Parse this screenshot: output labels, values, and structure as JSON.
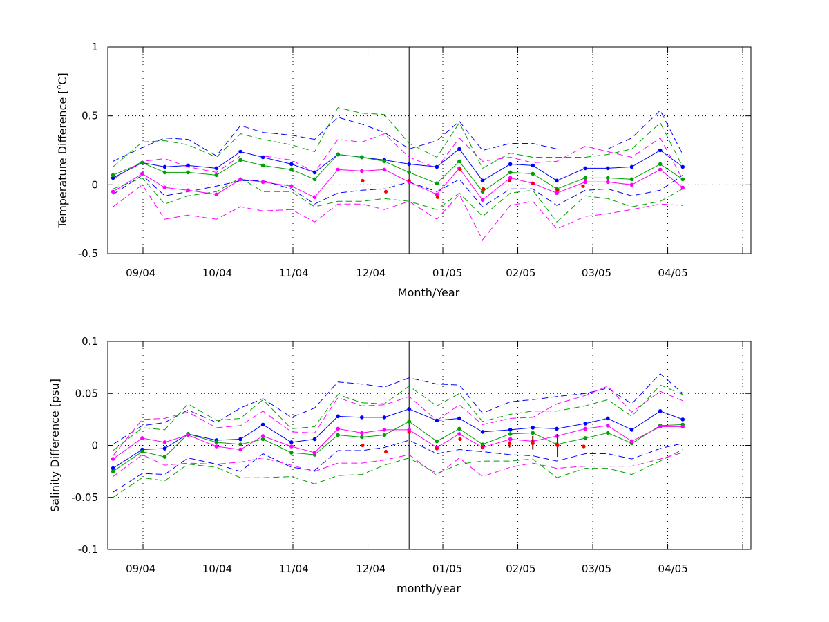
{
  "chart_data": [
    {
      "type": "line",
      "xlabel": "Month/Year",
      "ylabel_main": "Temperature Difference [",
      "ylabel_sup": "o",
      "ylabel_tail": "C]",
      "ylim": [
        -0.5,
        1
      ],
      "yticks": [
        -0.5,
        0,
        0.5,
        1
      ],
      "ytick_labels": [
        "-0.5",
        "0",
        "0.5",
        "1"
      ],
      "xlim": [
        0.53,
        9.11
      ],
      "xticks": [
        1,
        2,
        3,
        4,
        5,
        6,
        7,
        8,
        9
      ],
      "xtick_labels": [
        "09/04",
        "10/04",
        "11/04",
        "12/04",
        "01/05",
        "02/05",
        "03/05",
        "04/05",
        ""
      ],
      "tick_label_positions": [
        0.97,
        1.99,
        3.01,
        4.04,
        5.06,
        6.04,
        7.05,
        8.07
      ],
      "grid": true,
      "vline_x": 4.55,
      "x": [
        0.6,
        0.99,
        1.29,
        1.6,
        1.98,
        2.3,
        2.6,
        2.98,
        3.29,
        3.6,
        3.92,
        4.22,
        4.55,
        4.92,
        5.22,
        5.53,
        5.9,
        6.2,
        6.52,
        6.9,
        7.2,
        7.52,
        7.9,
        8.2
      ],
      "series": [
        {
          "name": "",
          "color": "#0000ff",
          "style": "solid-marker",
          "values": [
            0.05,
            0.16,
            0.13,
            0.14,
            0.12,
            0.24,
            0.2,
            0.15,
            0.09,
            0.22,
            0.2,
            0.18,
            0.15,
            0.13,
            0.26,
            0.03,
            0.15,
            0.14,
            0.03,
            0.12,
            0.12,
            0.13,
            0.25,
            0.13
          ]
        },
        {
          "name": "",
          "color": "#00a000",
          "style": "solid-marker",
          "values": [
            0.07,
            0.16,
            0.09,
            0.09,
            0.07,
            0.18,
            0.14,
            0.11,
            0.04,
            0.22,
            0.2,
            0.17,
            0.09,
            0.01,
            0.17,
            -0.05,
            0.09,
            0.08,
            -0.03,
            0.05,
            0.05,
            0.04,
            0.15,
            0.04
          ]
        },
        {
          "name": "",
          "color": "#ff00ff",
          "style": "solid-marker",
          "values": [
            -0.05,
            0.08,
            -0.02,
            -0.04,
            -0.07,
            0.04,
            0.02,
            -0.01,
            -0.09,
            0.11,
            0.1,
            0.11,
            0.02,
            -0.07,
            0.12,
            -0.11,
            0.05,
            0.01,
            -0.06,
            0.02,
            0.02,
            0.0,
            0.11,
            -0.02
          ]
        },
        {
          "name": "",
          "color": "#0000ff",
          "style": "dashed",
          "values": [
            0.17,
            0.27,
            0.34,
            0.33,
            0.21,
            0.43,
            0.38,
            0.36,
            0.33,
            0.49,
            0.44,
            0.38,
            0.26,
            0.32,
            0.46,
            0.25,
            0.3,
            0.3,
            0.26,
            0.26,
            0.26,
            0.34,
            0.54,
            0.22
          ]
        },
        {
          "name": "",
          "color": "#00a000",
          "style": "dashed",
          "values": [
            0.13,
            0.31,
            0.32,
            0.29,
            0.2,
            0.37,
            0.33,
            0.29,
            0.24,
            0.56,
            0.52,
            0.51,
            0.3,
            0.2,
            0.45,
            0.12,
            0.23,
            0.2,
            0.2,
            0.2,
            0.22,
            0.26,
            0.45,
            0.13
          ]
        },
        {
          "name": "",
          "color": "#ff00ff",
          "style": "dashed",
          "values": [
            0.04,
            0.17,
            0.19,
            0.13,
            0.09,
            0.21,
            0.21,
            0.18,
            0.09,
            0.33,
            0.31,
            0.37,
            0.2,
            0.12,
            0.34,
            0.17,
            0.2,
            0.16,
            0.17,
            0.28,
            0.24,
            0.2,
            0.34,
            0.04
          ]
        },
        {
          "name": "",
          "color": "#0000ff",
          "style": "dashed",
          "values": [
            -0.07,
            0.07,
            -0.08,
            -0.05,
            -0.01,
            0.03,
            0.03,
            -0.03,
            -0.14,
            -0.06,
            -0.04,
            -0.03,
            0.02,
            -0.05,
            0.04,
            -0.16,
            -0.03,
            -0.03,
            -0.15,
            -0.04,
            -0.03,
            -0.08,
            -0.04,
            0.07
          ]
        },
        {
          "name": "",
          "color": "#00a000",
          "style": "dashed",
          "values": [
            -0.03,
            0.05,
            -0.14,
            -0.08,
            -0.05,
            0.05,
            -0.05,
            -0.05,
            -0.16,
            -0.12,
            -0.12,
            -0.1,
            -0.12,
            -0.18,
            -0.06,
            -0.23,
            -0.06,
            -0.04,
            -0.27,
            -0.08,
            -0.1,
            -0.16,
            -0.12,
            -0.03
          ]
        },
        {
          "name": "",
          "color": "#ff00ff",
          "style": "dashed",
          "values": [
            -0.16,
            0.0,
            -0.25,
            -0.22,
            -0.25,
            -0.16,
            -0.19,
            -0.18,
            -0.27,
            -0.14,
            -0.14,
            -0.18,
            -0.12,
            -0.25,
            -0.07,
            -0.4,
            -0.15,
            -0.12,
            -0.32,
            -0.23,
            -0.21,
            -0.18,
            -0.14,
            -0.15
          ]
        }
      ],
      "red_points": {
        "color": "#ff0000",
        "x": [
          3.93,
          4.24,
          4.55,
          4.93,
          5.23,
          5.54,
          5.89,
          6.2,
          6.53,
          6.87
        ],
        "values": [
          0.03,
          -0.05,
          0.03,
          -0.09,
          0.11,
          -0.03,
          0.03,
          0.01,
          -0.04,
          -0.01
        ]
      },
      "error_bars": []
    },
    {
      "type": "line",
      "xlabel": "month/year",
      "ylabel_main": "Salinity Difference [psu]",
      "ylabel_sup": "",
      "ylabel_tail": "",
      "ylim": [
        -0.1,
        0.1
      ],
      "yticks": [
        -0.1,
        -0.05,
        0,
        0.05,
        0.1
      ],
      "ytick_labels": [
        "-0.1",
        "-0.05",
        "0",
        "0.05",
        "0.1"
      ],
      "xlim": [
        0.53,
        9.11
      ],
      "xticks": [
        1,
        2,
        3,
        4,
        5,
        6,
        7,
        8,
        9
      ],
      "xtick_labels": [
        "09/04",
        "10/04",
        "11/04",
        "12/04",
        "01/05",
        "02/05",
        "03/05",
        "04/05",
        ""
      ],
      "tick_label_positions": [
        0.97,
        1.99,
        3.01,
        4.04,
        5.06,
        6.04,
        7.05,
        8.07
      ],
      "grid": true,
      "vline_x": 4.55,
      "x": [
        0.6,
        0.99,
        1.29,
        1.6,
        1.98,
        2.3,
        2.6,
        2.98,
        3.29,
        3.6,
        3.92,
        4.22,
        4.55,
        4.92,
        5.22,
        5.53,
        5.9,
        6.2,
        6.52,
        6.9,
        7.2,
        7.52,
        7.9,
        8.2
      ],
      "series": [
        {
          "name": "",
          "color": "#0000ff",
          "style": "solid-marker",
          "values": [
            -0.022,
            -0.004,
            -0.003,
            0.011,
            0.005,
            0.006,
            0.02,
            0.003,
            0.006,
            0.028,
            0.027,
            0.027,
            0.035,
            0.024,
            0.026,
            0.013,
            0.015,
            0.017,
            0.016,
            0.021,
            0.026,
            0.015,
            0.033,
            0.025
          ]
        },
        {
          "name": "",
          "color": "#00a000",
          "style": "solid-marker",
          "values": [
            -0.025,
            -0.006,
            -0.011,
            0.011,
            0.003,
            0.001,
            0.006,
            -0.007,
            -0.009,
            0.01,
            0.008,
            0.01,
            0.023,
            0.004,
            0.016,
            0.001,
            0.011,
            0.012,
            0.001,
            0.007,
            0.012,
            0.002,
            0.019,
            0.02
          ]
        },
        {
          "name": "",
          "color": "#ff00ff",
          "style": "solid-marker",
          "values": [
            -0.013,
            0.007,
            0.003,
            0.01,
            -0.001,
            -0.004,
            0.009,
            -0.001,
            -0.007,
            0.016,
            0.012,
            0.015,
            0.015,
            -0.002,
            0.011,
            -0.002,
            0.006,
            0.004,
            0.009,
            0.016,
            0.019,
            0.004,
            0.018,
            0.018
          ]
        },
        {
          "name": "",
          "color": "#0000ff",
          "style": "dashed",
          "values": [
            0.001,
            0.019,
            0.022,
            0.034,
            0.022,
            0.036,
            0.045,
            0.027,
            0.036,
            0.061,
            0.059,
            0.056,
            0.065,
            0.059,
            0.058,
            0.031,
            0.042,
            0.044,
            0.047,
            0.05,
            0.055,
            0.04,
            0.069,
            0.05
          ]
        },
        {
          "name": "",
          "color": "#00a000",
          "style": "dashed",
          "values": [
            -0.005,
            0.017,
            0.015,
            0.04,
            0.024,
            0.026,
            0.044,
            0.016,
            0.018,
            0.049,
            0.041,
            0.04,
            0.057,
            0.038,
            0.05,
            0.023,
            0.03,
            0.033,
            0.033,
            0.038,
            0.044,
            0.028,
            0.058,
            0.049
          ]
        },
        {
          "name": "",
          "color": "#ff00ff",
          "style": "dashed",
          "values": [
            -0.01,
            0.025,
            0.026,
            0.032,
            0.017,
            0.019,
            0.033,
            0.013,
            0.012,
            0.046,
            0.038,
            0.039,
            0.047,
            0.024,
            0.039,
            0.02,
            0.026,
            0.027,
            0.04,
            0.048,
            0.057,
            0.032,
            0.052,
            0.043
          ]
        },
        {
          "name": "",
          "color": "#0000ff",
          "style": "dashed",
          "values": [
            -0.045,
            -0.027,
            -0.028,
            -0.012,
            -0.018,
            -0.025,
            -0.008,
            -0.021,
            -0.024,
            -0.005,
            -0.005,
            -0.002,
            0.005,
            -0.008,
            -0.004,
            -0.006,
            -0.009,
            -0.01,
            -0.015,
            -0.008,
            -0.008,
            -0.013,
            -0.003,
            0.002
          ]
        },
        {
          "name": "",
          "color": "#00a000",
          "style": "dashed",
          "values": [
            -0.05,
            -0.031,
            -0.034,
            -0.018,
            -0.021,
            -0.031,
            -0.031,
            -0.03,
            -0.037,
            -0.029,
            -0.028,
            -0.019,
            -0.012,
            -0.027,
            -0.018,
            -0.015,
            -0.015,
            -0.013,
            -0.031,
            -0.022,
            -0.022,
            -0.028,
            -0.015,
            -0.004
          ]
        },
        {
          "name": "",
          "color": "#ff00ff",
          "style": "dashed",
          "values": [
            -0.03,
            -0.009,
            -0.019,
            -0.017,
            -0.018,
            -0.016,
            -0.012,
            -0.019,
            -0.025,
            -0.017,
            -0.017,
            -0.014,
            -0.009,
            -0.029,
            -0.012,
            -0.03,
            -0.021,
            -0.017,
            -0.022,
            -0.02,
            -0.02,
            -0.02,
            -0.013,
            -0.007
          ]
        }
      ],
      "red_points": {
        "color": "#ff0000",
        "x": [
          3.93,
          4.24,
          4.55,
          4.92,
          5.23,
          5.53,
          5.89,
          6.2,
          6.53,
          6.88
        ],
        "values": [
          0.0,
          -0.006,
          0.013,
          -0.003,
          0.006,
          -0.002,
          0.002,
          0.002,
          0.0,
          -0.001
        ]
      },
      "error_bars": [
        {
          "color": "#800000",
          "x": 5.89,
          "low": -0.002,
          "high": 0.004
        },
        {
          "color": "#800000",
          "x": 6.2,
          "low": -0.004,
          "high": 0.009
        },
        {
          "color": "#800000",
          "x": 6.53,
          "low": -0.011,
          "high": 0.011
        }
      ]
    }
  ]
}
